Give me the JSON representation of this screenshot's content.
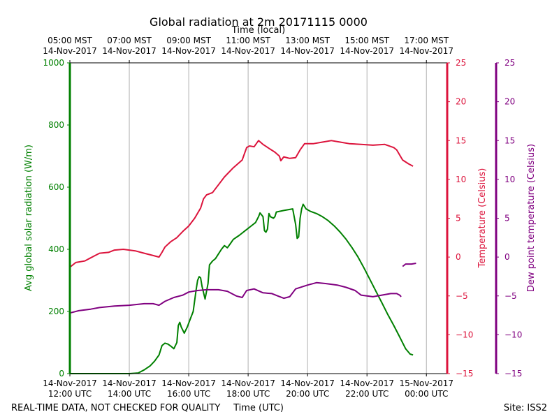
{
  "chart_data": {
    "type": "line",
    "title": "Global radiation at 2m 20171115 0000",
    "x_top_label": "Time (local)",
    "x_bottom_label": "Time (UTC)",
    "footer_left": "REAL-TIME DATA, NOT CHECKED FOR QUALITY",
    "footer_right": "Site: ISS2",
    "grid": true,
    "x_range_utc_hours": [
      12.0,
      24.7
    ],
    "bottom_ticks": [
      {
        "x": 12,
        "line1": "14-Nov-2017",
        "line2": "12:00 UTC"
      },
      {
        "x": 14,
        "line1": "14-Nov-2017",
        "line2": "14:00 UTC"
      },
      {
        "x": 16,
        "line1": "14-Nov-2017",
        "line2": "16:00 UTC"
      },
      {
        "x": 18,
        "line1": "14-Nov-2017",
        "line2": "18:00 UTC"
      },
      {
        "x": 20,
        "line1": "14-Nov-2017",
        "line2": "20:00 UTC"
      },
      {
        "x": 22,
        "line1": "14-Nov-2017",
        "line2": "22:00 UTC"
      },
      {
        "x": 24,
        "line1": "15-Nov-2017",
        "line2": "00:00 UTC"
      }
    ],
    "top_ticks": [
      {
        "x": 12,
        "line1": "05:00 MST",
        "line2": "14-Nov-2017"
      },
      {
        "x": 14,
        "line1": "07:00 MST",
        "line2": "14-Nov-2017"
      },
      {
        "x": 16,
        "line1": "09:00 MST",
        "line2": "14-Nov-2017"
      },
      {
        "x": 18,
        "line1": "11:00 MST",
        "line2": "14-Nov-2017"
      },
      {
        "x": 20,
        "line1": "13:00 MST",
        "line2": "14-Nov-2017"
      },
      {
        "x": 22,
        "line1": "15:00 MST",
        "line2": "14-Nov-2017"
      },
      {
        "x": 24,
        "line1": "17:00 MST",
        "line2": "14-Nov-2017"
      }
    ],
    "axes": {
      "radiation": {
        "label": "Avg global solar radiation (W/m)",
        "range": [
          0,
          1000
        ],
        "ticks": [
          0,
          200,
          400,
          600,
          800,
          1000
        ],
        "color": "#008000"
      },
      "temperature": {
        "label": "Temperature (Celsius)",
        "range": [
          -15,
          25
        ],
        "ticks": [
          -15,
          -10,
          -5,
          0,
          5,
          10,
          15,
          20,
          25
        ],
        "color": "#dc143c"
      },
      "dewpoint": {
        "label": "Dew point temperature (Celsius)",
        "range": [
          -15,
          25
        ],
        "ticks": [
          -15,
          -10,
          -5,
          0,
          5,
          10,
          15,
          20,
          25
        ],
        "color": "#800080"
      }
    },
    "series": [
      {
        "axis": "radiation",
        "color": "#008000",
        "points": [
          [
            12.0,
            0
          ],
          [
            13.0,
            0
          ],
          [
            14.0,
            0
          ],
          [
            14.3,
            2
          ],
          [
            14.5,
            12
          ],
          [
            14.7,
            25
          ],
          [
            14.85,
            40
          ],
          [
            15.0,
            60
          ],
          [
            15.1,
            90
          ],
          [
            15.2,
            98
          ],
          [
            15.3,
            95
          ],
          [
            15.4,
            88
          ],
          [
            15.5,
            80
          ],
          [
            15.6,
            100
          ],
          [
            15.65,
            155
          ],
          [
            15.7,
            165
          ],
          [
            15.75,
            150
          ],
          [
            15.85,
            130
          ],
          [
            15.95,
            150
          ],
          [
            16.05,
            175
          ],
          [
            16.15,
            200
          ],
          [
            16.25,
            270
          ],
          [
            16.3,
            300
          ],
          [
            16.35,
            312
          ],
          [
            16.4,
            308
          ],
          [
            16.45,
            280
          ],
          [
            16.55,
            240
          ],
          [
            16.6,
            265
          ],
          [
            16.65,
            290
          ],
          [
            16.7,
            350
          ],
          [
            16.8,
            362
          ],
          [
            16.9,
            370
          ],
          [
            17.0,
            385
          ],
          [
            17.1,
            400
          ],
          [
            17.2,
            412
          ],
          [
            17.3,
            405
          ],
          [
            17.4,
            418
          ],
          [
            17.5,
            432
          ],
          [
            17.7,
            445
          ],
          [
            17.9,
            460
          ],
          [
            18.1,
            475
          ],
          [
            18.25,
            486
          ],
          [
            18.35,
            505
          ],
          [
            18.4,
            517
          ],
          [
            18.5,
            505
          ],
          [
            18.55,
            460
          ],
          [
            18.6,
            455
          ],
          [
            18.65,
            465
          ],
          [
            18.7,
            515
          ],
          [
            18.75,
            505
          ],
          [
            18.85,
            500
          ],
          [
            18.9,
            505
          ],
          [
            18.95,
            520
          ],
          [
            19.2,
            525
          ],
          [
            19.5,
            530
          ],
          [
            19.6,
            480
          ],
          [
            19.65,
            435
          ],
          [
            19.7,
            440
          ],
          [
            19.75,
            500
          ],
          [
            19.8,
            530
          ],
          [
            19.85,
            545
          ],
          [
            19.95,
            530
          ],
          [
            20.1,
            522
          ],
          [
            20.3,
            515
          ],
          [
            20.5,
            505
          ],
          [
            20.7,
            492
          ],
          [
            20.9,
            475
          ],
          [
            21.1,
            455
          ],
          [
            21.3,
            432
          ],
          [
            21.5,
            405
          ],
          [
            21.7,
            375
          ],
          [
            21.9,
            340
          ],
          [
            22.1,
            303
          ],
          [
            22.3,
            265
          ],
          [
            22.5,
            228
          ],
          [
            22.7,
            190
          ],
          [
            22.9,
            155
          ],
          [
            23.1,
            118
          ],
          [
            23.3,
            80
          ],
          [
            23.45,
            63
          ],
          [
            23.55,
            60
          ]
        ]
      },
      {
        "axis": "temperature",
        "color": "#dc143c",
        "points": [
          [
            12.0,
            -1.3
          ],
          [
            12.2,
            -0.7
          ],
          [
            12.5,
            -0.5
          ],
          [
            12.8,
            0.1
          ],
          [
            13.0,
            0.5
          ],
          [
            13.3,
            0.6
          ],
          [
            13.5,
            0.9
          ],
          [
            13.8,
            1.0
          ],
          [
            14.0,
            0.9
          ],
          [
            14.2,
            0.8
          ],
          [
            14.5,
            0.5
          ],
          [
            14.8,
            0.2
          ],
          [
            14.9,
            0.1
          ],
          [
            15.0,
            0.0
          ],
          [
            15.1,
            0.6
          ],
          [
            15.2,
            1.3
          ],
          [
            15.4,
            2.0
          ],
          [
            15.6,
            2.5
          ],
          [
            15.8,
            3.3
          ],
          [
            16.0,
            4.0
          ],
          [
            16.2,
            5.0
          ],
          [
            16.4,
            6.3
          ],
          [
            16.5,
            7.5
          ],
          [
            16.6,
            8.0
          ],
          [
            16.8,
            8.3
          ],
          [
            17.0,
            9.3
          ],
          [
            17.2,
            10.3
          ],
          [
            17.5,
            11.5
          ],
          [
            17.8,
            12.5
          ],
          [
            17.95,
            14.1
          ],
          [
            18.05,
            14.3
          ],
          [
            18.2,
            14.2
          ],
          [
            18.35,
            15.0
          ],
          [
            18.5,
            14.5
          ],
          [
            18.7,
            14.0
          ],
          [
            18.9,
            13.5
          ],
          [
            19.05,
            13.0
          ],
          [
            19.1,
            12.4
          ],
          [
            19.2,
            12.9
          ],
          [
            19.4,
            12.7
          ],
          [
            19.6,
            12.8
          ],
          [
            19.75,
            13.8
          ],
          [
            19.9,
            14.6
          ],
          [
            20.2,
            14.6
          ],
          [
            20.5,
            14.8
          ],
          [
            20.8,
            15.0
          ],
          [
            21.1,
            14.8
          ],
          [
            21.4,
            14.6
          ],
          [
            21.8,
            14.5
          ],
          [
            22.2,
            14.4
          ],
          [
            22.6,
            14.5
          ],
          [
            22.9,
            14.1
          ],
          [
            23.0,
            13.8
          ],
          [
            23.2,
            12.5
          ],
          [
            23.4,
            12.0
          ],
          [
            23.55,
            11.7
          ]
        ]
      },
      {
        "axis": "dewpoint",
        "color": "#800080",
        "points": [
          [
            12.0,
            -7.2
          ],
          [
            12.3,
            -6.9
          ],
          [
            12.7,
            -6.7
          ],
          [
            13.0,
            -6.5
          ],
          [
            13.5,
            -6.3
          ],
          [
            14.0,
            -6.2
          ],
          [
            14.5,
            -6.0
          ],
          [
            14.8,
            -6.0
          ],
          [
            15.0,
            -6.2
          ],
          [
            15.2,
            -5.7
          ],
          [
            15.5,
            -5.2
          ],
          [
            15.8,
            -4.9
          ],
          [
            16.0,
            -4.5
          ],
          [
            16.3,
            -4.3
          ],
          [
            16.6,
            -4.2
          ],
          [
            17.0,
            -4.2
          ],
          [
            17.3,
            -4.4
          ],
          [
            17.6,
            -5.0
          ],
          [
            17.8,
            -5.2
          ],
          [
            17.95,
            -4.3
          ],
          [
            18.2,
            -4.1
          ],
          [
            18.5,
            -4.6
          ],
          [
            18.8,
            -4.7
          ],
          [
            19.0,
            -5.0
          ],
          [
            19.2,
            -5.3
          ],
          [
            19.4,
            -5.1
          ],
          [
            19.6,
            -4.1
          ],
          [
            20.0,
            -3.6
          ],
          [
            20.3,
            -3.3
          ],
          [
            20.6,
            -3.4
          ],
          [
            21.0,
            -3.6
          ],
          [
            21.3,
            -3.9
          ],
          [
            21.6,
            -4.3
          ],
          [
            21.8,
            -4.9
          ],
          [
            22.2,
            -5.1
          ],
          [
            22.5,
            -4.9
          ],
          [
            22.8,
            -4.7
          ],
          [
            23.0,
            -4.7
          ],
          [
            23.1,
            -4.9
          ],
          [
            23.15,
            -5.1
          ]
        ]
      },
      {
        "axis": "dewpoint",
        "color": "#800080",
        "points": [
          [
            23.2,
            -1.2
          ],
          [
            23.3,
            -0.9
          ],
          [
            23.5,
            -0.9
          ],
          [
            23.65,
            -0.8
          ]
        ]
      }
    ]
  }
}
